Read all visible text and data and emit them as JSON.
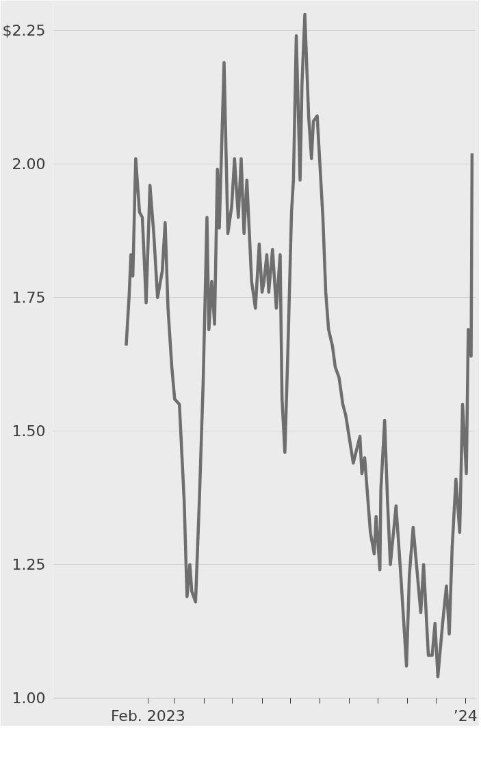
{
  "chart_data": {
    "type": "line",
    "x": [
      "2023-01-09",
      "2023-01-12",
      "2023-01-14",
      "2023-01-16",
      "2023-01-19",
      "2023-01-23",
      "2023-01-26",
      "2023-01-30",
      "2023-02-03",
      "2023-02-07",
      "2023-02-11",
      "2023-02-16",
      "2023-02-19",
      "2023-02-22",
      "2023-02-26",
      "2023-03-01",
      "2023-03-06",
      "2023-03-11",
      "2023-03-14",
      "2023-03-17",
      "2023-03-19",
      "2023-03-23",
      "2023-03-27",
      "2023-03-31",
      "2023-04-04",
      "2023-04-06",
      "2023-04-09",
      "2023-04-12",
      "2023-04-15",
      "2023-04-17",
      "2023-04-22",
      "2023-04-26",
      "2023-04-30",
      "2023-05-03",
      "2023-05-07",
      "2023-05-10",
      "2023-05-13",
      "2023-05-16",
      "2023-05-21",
      "2023-05-25",
      "2023-05-29",
      "2023-06-01",
      "2023-06-03",
      "2023-06-06",
      "2023-06-08",
      "2023-06-12",
      "2023-06-16",
      "2023-06-20",
      "2023-06-22",
      "2023-06-25",
      "2023-06-28",
      "2023-07-02",
      "2023-07-04",
      "2023-07-07",
      "2023-07-11",
      "2023-07-13",
      "2023-07-16",
      "2023-07-20",
      "2023-07-23",
      "2023-07-25",
      "2023-07-29",
      "2023-08-04",
      "2023-08-07",
      "2023-08-10",
      "2023-08-14",
      "2023-08-17",
      "2023-08-21",
      "2023-08-25",
      "2023-08-28",
      "2023-09-05",
      "2023-09-12",
      "2023-09-14",
      "2023-09-17",
      "2023-09-23",
      "2023-09-27",
      "2023-09-29",
      "2023-10-03",
      "2023-10-04",
      "2023-10-08",
      "2023-10-11",
      "2023-10-14",
      "2023-10-20",
      "2023-10-25",
      "2023-10-31",
      "2023-11-03",
      "2023-11-07",
      "2023-11-15",
      "2023-11-18",
      "2023-11-23",
      "2023-11-27",
      "2023-11-30",
      "2023-12-03",
      "2023-12-08",
      "2023-12-12",
      "2023-12-15",
      "2023-12-18",
      "2023-12-22",
      "2023-12-26",
      "2023-12-29",
      "2024-01-02",
      "2024-01-04",
      "2024-01-07",
      "2024-01-08"
    ],
    "series": [
      {
        "color": "#6e6e6e",
        "values": [
          1.66,
          1.75,
          1.83,
          1.79,
          2.01,
          1.91,
          1.9,
          1.74,
          1.96,
          1.87,
          1.75,
          1.8,
          1.89,
          1.73,
          1.62,
          1.56,
          1.55,
          1.37,
          1.19,
          1.25,
          1.2,
          1.18,
          1.37,
          1.59,
          1.9,
          1.69,
          1.78,
          1.7,
          1.99,
          1.88,
          2.19,
          1.87,
          1.92,
          2.01,
          1.9,
          2.01,
          1.87,
          1.97,
          1.78,
          1.73,
          1.85,
          1.76,
          1.78,
          1.83,
          1.76,
          1.84,
          1.73,
          1.83,
          1.56,
          1.46,
          1.64,
          1.91,
          1.97,
          2.24,
          1.97,
          2.15,
          2.28,
          2.09,
          2.01,
          2.08,
          2.09,
          1.9,
          1.76,
          1.69,
          1.66,
          1.62,
          1.6,
          1.55,
          1.53,
          1.44,
          1.49,
          1.42,
          1.45,
          1.31,
          1.27,
          1.34,
          1.24,
          1.39,
          1.52,
          1.37,
          1.25,
          1.36,
          1.23,
          1.06,
          1.23,
          1.32,
          1.16,
          1.25,
          1.08,
          1.08,
          1.14,
          1.04,
          1.14,
          1.21,
          1.12,
          1.28,
          1.41,
          1.31,
          1.55,
          1.42,
          1.69,
          1.64,
          2.02
        ]
      }
    ],
    "xlim": [
      "2022-10-24",
      "2024-01-12"
    ],
    "xticks": [
      {
        "value": "2023-02-01",
        "label": "Feb. 2023"
      },
      {
        "value": "2023-03-01",
        "label": null
      },
      {
        "value": "2023-04-01",
        "label": null
      },
      {
        "value": "2023-05-01",
        "label": null
      },
      {
        "value": "2023-06-01",
        "label": null
      },
      {
        "value": "2023-07-01",
        "label": null
      },
      {
        "value": "2023-08-01",
        "label": null
      },
      {
        "value": "2023-09-01",
        "label": null
      },
      {
        "value": "2023-10-01",
        "label": null
      },
      {
        "value": "2023-11-01",
        "label": null
      },
      {
        "value": "2023-12-01",
        "label": null
      },
      {
        "value": "2024-01-01",
        "label": "’24"
      }
    ],
    "ylim": [
      1.0,
      2.3
    ],
    "yticks": [
      {
        "value": 1.0,
        "label": "1.00"
      },
      {
        "value": 1.25,
        "label": "1.25"
      },
      {
        "value": 1.5,
        "label": "1.50"
      },
      {
        "value": 1.75,
        "label": "1.75"
      },
      {
        "value": 2.0,
        "label": "2.00"
      },
      {
        "value": 2.25,
        "label": "$2.25"
      }
    ],
    "grid": "y",
    "marker": "none",
    "line_style": "solid"
  }
}
